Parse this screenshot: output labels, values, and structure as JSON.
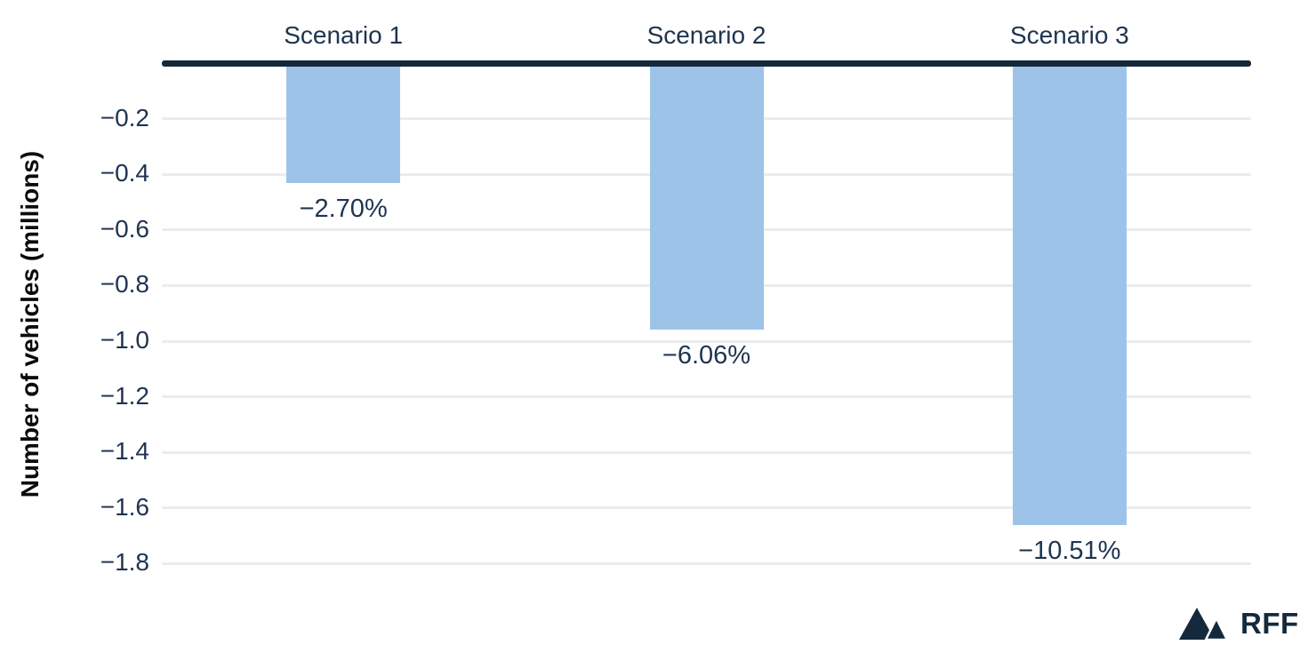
{
  "chart_data": {
    "type": "bar",
    "categories": [
      "Scenario 1",
      "Scenario 2",
      "Scenario 3"
    ],
    "values": [
      -0.43,
      -0.96,
      -1.66
    ],
    "bar_labels": [
      "−2.70%",
      "−6.06%",
      "−10.51%"
    ],
    "title": "",
    "xlabel": "",
    "ylabel": "Number of vehicles (millions)",
    "ylim": [
      -1.9,
      0
    ],
    "yticks": [
      {
        "value": -0.2,
        "label": "−0.2"
      },
      {
        "value": -0.4,
        "label": "−0.4"
      },
      {
        "value": -0.6,
        "label": "−0.6"
      },
      {
        "value": -0.8,
        "label": "−0.8"
      },
      {
        "value": -1.0,
        "label": "−1.0"
      },
      {
        "value": -1.2,
        "label": "−1.2"
      },
      {
        "value": -1.4,
        "label": "−1.4"
      },
      {
        "value": -1.6,
        "label": "−1.6"
      },
      {
        "value": -1.8,
        "label": "−1.8"
      }
    ],
    "legend": "none",
    "grid": "horizontal",
    "colors": {
      "bar_fill": "#9dc4e8",
      "zero_axis_line": "#14293c",
      "gridline": "#ececec",
      "tick_text": "#1e3450",
      "category_text": "#1e3450",
      "value_label_text": "#1e3450",
      "y_title_text": "#0b0b0b",
      "background": "#ffffff",
      "logo": "#14293c"
    }
  },
  "footer": {
    "logo_text": "RFF"
  }
}
